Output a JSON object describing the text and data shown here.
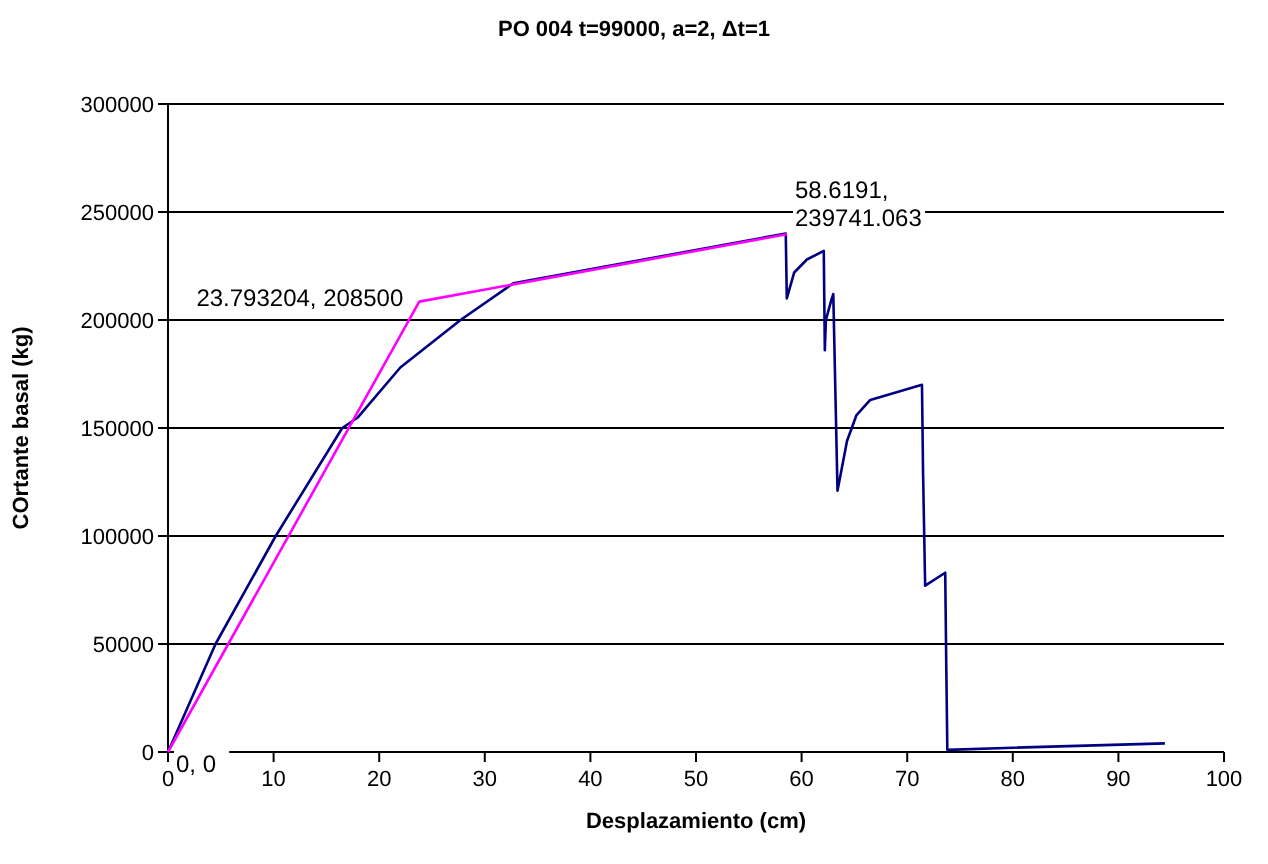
{
  "chart_data": {
    "type": "line",
    "title": "PO 004 t=99000, a=2, Δt=1",
    "xlabel": "Desplazamiento (cm)",
    "ylabel": "COrtante basal (kg)",
    "xlim": [
      0,
      100
    ],
    "xticks": [
      0,
      10,
      20,
      30,
      40,
      50,
      60,
      70,
      80,
      90,
      100
    ],
    "ylim": [
      0,
      300000
    ],
    "yticks": [
      0,
      50000,
      100000,
      150000,
      200000,
      250000,
      300000
    ],
    "grid": "y",
    "marker": "none",
    "line_style": "solid",
    "series": [
      {
        "color": "#000080",
        "x": [
          0,
          4.5,
          10.2,
          16.5,
          18,
          22,
          27.7,
          32.7,
          58.5,
          58.6,
          59.3,
          60.5,
          62.1,
          62.2,
          62.3,
          62.8,
          63,
          63.4,
          64.3,
          65.2,
          66.5,
          71.4,
          71.5,
          71.7,
          73.6,
          73.7,
          73.8,
          80,
          94.4
        ],
        "values": [
          0,
          50000,
          100000,
          150000,
          155000,
          178000,
          200000,
          217000,
          240000,
          210000,
          222000,
          228000,
          232000,
          186000,
          200000,
          209000,
          212000,
          121000,
          144000,
          156000,
          163000,
          170000,
          130000,
          77000,
          83000,
          40000,
          1000,
          2000,
          4000
        ]
      },
      {
        "color": "#ff00ff",
        "x": [
          0,
          23.793204,
          58.6191
        ],
        "values": [
          0,
          208500,
          239741.063
        ]
      }
    ],
    "annotations": [
      {
        "text": "0, 0",
        "x": 0,
        "y": 0
      },
      {
        "text": "23.793204, 208500",
        "x": 23.793204,
        "y": 208500
      },
      {
        "text": "58.6191,\n239741.063",
        "x": 58.6191,
        "y": 239741.063
      }
    ]
  }
}
